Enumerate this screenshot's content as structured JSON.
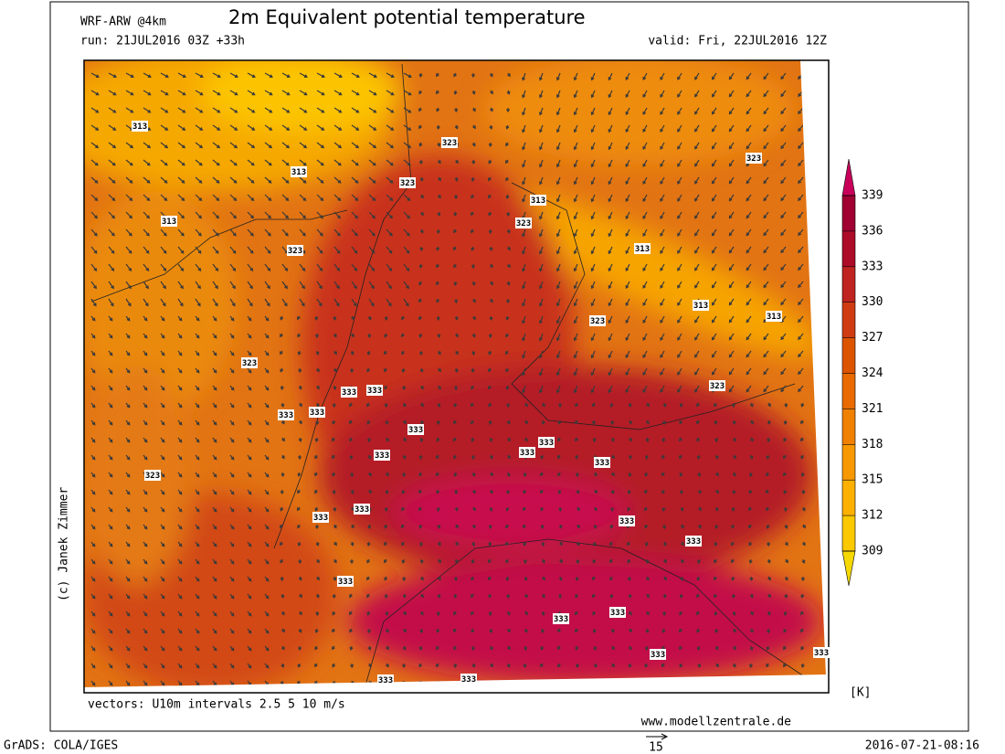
{
  "header": {
    "model": "WRF-ARW @4km",
    "title": "2m Equivalent potential temperature",
    "run": "run: 21JUL2016 03Z +33h",
    "valid": "valid: Fri, 22JUL2016 12Z"
  },
  "map": {
    "copyright": "(c) Janek Zimmer",
    "vectors_note": "vectors: U10m intervals 2.5 5 10 m/s",
    "website": "www.modellzentrale.de",
    "contour_labels": [
      "313",
      "313",
      "313",
      "323",
      "323",
      "313",
      "323",
      "323",
      "323",
      "313",
      "313",
      "313",
      "323",
      "323",
      "323",
      "333",
      "333",
      "333",
      "333",
      "333",
      "333",
      "333",
      "333",
      "333",
      "323",
      "333",
      "333",
      "333",
      "333",
      "333",
      "333",
      "333",
      "333",
      "333",
      "333",
      "333"
    ]
  },
  "colorbar": {
    "levels": [
      309,
      312,
      315,
      318,
      321,
      324,
      327,
      330,
      333,
      336,
      339
    ],
    "colors": [
      "#fcc800",
      "#fcb000",
      "#f89800",
      "#f08000",
      "#e86a00",
      "#dc5400",
      "#cf3c14",
      "#bf2420",
      "#ad0c28",
      "#a00032"
    ],
    "under_color": "#f4d800",
    "over_color": "#c8005a",
    "unit": "[K]"
  },
  "footer": {
    "software": "GrADS: COLA/IGES",
    "reference_vector": "15",
    "timestamp": "2016-07-21-08:16"
  }
}
